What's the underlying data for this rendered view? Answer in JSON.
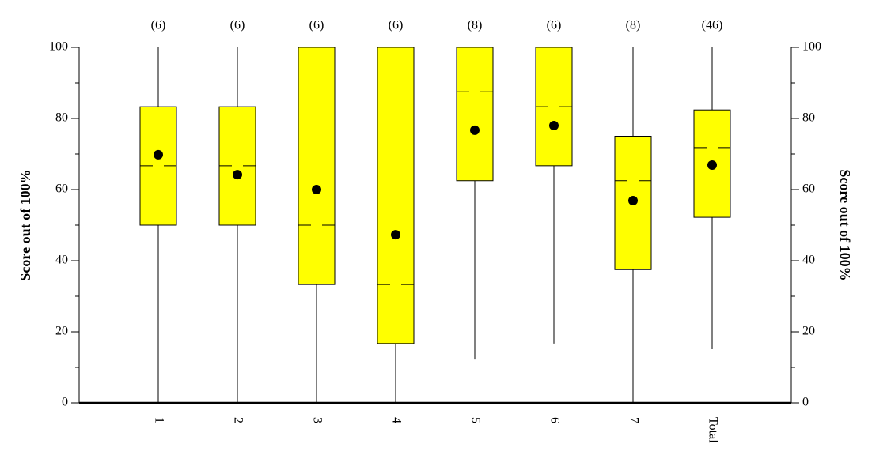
{
  "chart_data": {
    "type": "box",
    "y_label": "Score out of 100%",
    "y2_label": "Score out of 100%",
    "categories": [
      "1",
      "2",
      "3",
      "4",
      "5",
      "6",
      "7",
      "Total"
    ],
    "count_labels": [
      "(6)",
      "(6)",
      "(6)",
      "(6)",
      "(8)",
      "(6)",
      "(8)",
      "(46)"
    ],
    "low": [
      0,
      0,
      0,
      0,
      12.2,
      16.7,
      0,
      15.1
    ],
    "q1": [
      50,
      50,
      33.3,
      16.7,
      62.5,
      66.7,
      37.5,
      52.2
    ],
    "median": [
      66.7,
      66.7,
      50,
      33.3,
      87.5,
      83.3,
      62.5,
      71.8
    ],
    "q3": [
      83.3,
      83.3,
      100,
      100,
      100,
      100,
      75,
      82.4
    ],
    "high": [
      100,
      100,
      100,
      100,
      100,
      100,
      100,
      100
    ],
    "mean": [
      69.8,
      64.2,
      60,
      47.3,
      76.7,
      78,
      56.9,
      66.9
    ],
    "color": "#ffff00",
    "ylim": [
      0,
      100
    ],
    "yticks": [
      0,
      20,
      40,
      60,
      80,
      100
    ],
    "yminorticks": [
      10,
      30,
      50,
      70,
      90
    ]
  }
}
